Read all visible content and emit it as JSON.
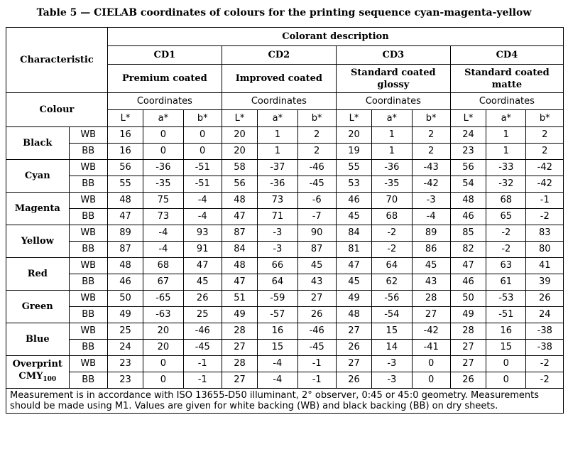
{
  "title": "Table 5 — CIELAB coordinates of colours for the printing sequence cyan-magenta-yellow",
  "header": {
    "characteristic": "Characteristic",
    "colorant_description": "Colorant description",
    "colour": "Colour",
    "coordinates": "Coordinates",
    "axes": [
      "L*",
      "a*",
      "b*"
    ],
    "cds": [
      {
        "name": "CD1",
        "desc": "Premium coated"
      },
      {
        "name": "CD2",
        "desc": "Improved coated"
      },
      {
        "name": "CD3",
        "desc": "Standard coated glossy"
      },
      {
        "name": "CD4",
        "desc": "Standard coated matte"
      }
    ]
  },
  "rows": [
    {
      "colour": "Black",
      "values": {
        "WB": [
          "16",
          "0",
          "0",
          "20",
          "1",
          "2",
          "20",
          "1",
          "2",
          "24",
          "1",
          "2"
        ],
        "BB": [
          "16",
          "0",
          "0",
          "20",
          "1",
          "2",
          "19",
          "1",
          "2",
          "23",
          "1",
          "2"
        ]
      }
    },
    {
      "colour": "Cyan",
      "values": {
        "WB": [
          "56",
          "-36",
          "-51",
          "58",
          "-37",
          "-46",
          "55",
          "-36",
          "-43",
          "56",
          "-33",
          "-42"
        ],
        "BB": [
          "55",
          "-35",
          "-51",
          "56",
          "-36",
          "-45",
          "53",
          "-35",
          "-42",
          "54",
          "-32",
          "-42"
        ]
      }
    },
    {
      "colour": "Magenta",
      "values": {
        "WB": [
          "48",
          "75",
          "-4",
          "48",
          "73",
          "-6",
          "46",
          "70",
          "-3",
          "48",
          "68",
          "-1"
        ],
        "BB": [
          "47",
          "73",
          "-4",
          "47",
          "71",
          "-7",
          "45",
          "68",
          "-4",
          "46",
          "65",
          "-2"
        ]
      }
    },
    {
      "colour": "Yellow",
      "values": {
        "WB": [
          "89",
          "-4",
          "93",
          "87",
          "-3",
          "90",
          "84",
          "-2",
          "89",
          "85",
          "-2",
          "83"
        ],
        "BB": [
          "87",
          "-4",
          "91",
          "84",
          "-3",
          "87",
          "81",
          "-2",
          "86",
          "82",
          "-2",
          "80"
        ]
      }
    },
    {
      "colour": "Red",
      "values": {
        "WB": [
          "48",
          "68",
          "47",
          "48",
          "66",
          "45",
          "47",
          "64",
          "45",
          "47",
          "63",
          "41"
        ],
        "BB": [
          "46",
          "67",
          "45",
          "47",
          "64",
          "43",
          "45",
          "62",
          "43",
          "46",
          "61",
          "39"
        ]
      }
    },
    {
      "colour": "Green",
      "values": {
        "WB": [
          "50",
          "-65",
          "26",
          "51",
          "-59",
          "27",
          "49",
          "-56",
          "28",
          "50",
          "-53",
          "26"
        ],
        "BB": [
          "49",
          "-63",
          "25",
          "49",
          "-57",
          "26",
          "48",
          "-54",
          "27",
          "49",
          "-51",
          "24"
        ]
      }
    },
    {
      "colour": "Blue",
      "values": {
        "WB": [
          "25",
          "20",
          "-46",
          "28",
          "16",
          "-46",
          "27",
          "15",
          "-42",
          "28",
          "16",
          "-38"
        ],
        "BB": [
          "24",
          "20",
          "-45",
          "27",
          "15",
          "-45",
          "26",
          "14",
          "-41",
          "27",
          "15",
          "-38"
        ]
      }
    },
    {
      "colour": "Overprint CMY100",
      "colour_main": "Overprint",
      "colour_line2": "CMY",
      "colour_sub": "100",
      "values": {
        "WB": [
          "23",
          "0",
          "-1",
          "28",
          "-4",
          "-1",
          "27",
          "-3",
          "0",
          "27",
          "0",
          "-2"
        ],
        "BB": [
          "23",
          "0",
          "-1",
          "27",
          "-4",
          "-1",
          "26",
          "-3",
          "0",
          "26",
          "0",
          "-2"
        ]
      }
    }
  ],
  "backings": [
    "WB",
    "BB"
  ],
  "footnote": "Measurement is in accordance with ISO 13655-D50 illuminant, 2° observer, 0:45 or 45:0 geometry. Measurements should be made using M1. Values are given for white backing (WB) and black backing (BB) on dry sheets."
}
